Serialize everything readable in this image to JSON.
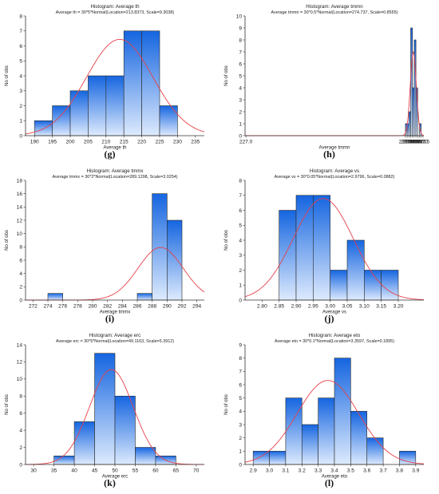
{
  "colors": {
    "bar_light": "#ddeafd",
    "bar_dark": "#1565e0",
    "bar_stroke": "#2a2a2a",
    "curve": "#e6404a",
    "axis": "#333333"
  },
  "chart_data": [
    {
      "id": "g",
      "type": "bar",
      "panel_label": "(g)",
      "title": "Histogram: Average th",
      "subtitle": "Average th = 30*5*Normal(Location=213.8373, Scale=9.3038)",
      "xlabel": "Average th",
      "ylabel": "No of obs",
      "xlim": [
        187.5,
        237.5
      ],
      "ylim": [
        0,
        8
      ],
      "xticks": [
        190,
        195,
        200,
        205,
        210,
        215,
        220,
        225,
        230,
        235
      ],
      "xtick_labels": [
        "190",
        "195",
        "200",
        "205",
        "210",
        "215",
        "220",
        "225",
        "230",
        "235"
      ],
      "yticks": [
        0,
        1,
        2,
        3,
        4,
        5,
        6,
        7,
        8
      ],
      "bin_width": 5,
      "bins": [
        {
          "start": 190,
          "count": 1
        },
        {
          "start": 195,
          "count": 2
        },
        {
          "start": 200,
          "count": 3
        },
        {
          "start": 205,
          "count": 4
        },
        {
          "start": 210,
          "count": 4
        },
        {
          "start": 215,
          "count": 7
        },
        {
          "start": 220,
          "count": 7
        },
        {
          "start": 225,
          "count": 2
        }
      ],
      "fit": {
        "n": 30,
        "binw": 5,
        "loc": 213.8373,
        "scale": 9.3038
      }
    },
    {
      "id": "h",
      "type": "bar",
      "panel_label": "(h)",
      "title": "Histogram: Average tmmn",
      "subtitle": "Average tmmn = 30*0.5*Normal(Location=274.737, Scale=0.8555)",
      "xlabel": "Average tmmn",
      "ylabel": "No of obs",
      "xlim": [
        226.75,
        277.75
      ],
      "ylim": [
        0,
        10
      ],
      "xticks": [
        227.0,
        272.5,
        273.0,
        273.5,
        274.0,
        274.5,
        275.0,
        275.5,
        276.0,
        276.5,
        277.0,
        277.5
      ],
      "xtick_labels": [
        "227.0",
        "272.5",
        "273.0",
        "273.5",
        "274.0",
        "274.5",
        "275.0",
        "275.5",
        "276.0",
        "276.5",
        "277.0",
        "277.5"
      ],
      "yticks": [
        0,
        1,
        2,
        3,
        4,
        5,
        6,
        7,
        8,
        9,
        10
      ],
      "bin_width": 0.5,
      "bins": [
        {
          "start": 272.5,
          "count": 1
        },
        {
          "start": 273.0,
          "count": 1
        },
        {
          "start": 273.5,
          "count": 2
        },
        {
          "start": 274.0,
          "count": 9
        },
        {
          "start": 274.5,
          "count": 4
        },
        {
          "start": 275.0,
          "count": 8
        },
        {
          "start": 275.5,
          "count": 4
        },
        {
          "start": 276.0,
          "count": 0
        },
        {
          "start": 276.5,
          "count": 1
        }
      ],
      "fit": {
        "n": 30,
        "binw": 0.5,
        "loc": 274.737,
        "scale": 0.8555
      }
    },
    {
      "id": "i",
      "type": "bar",
      "panel_label": "(i)",
      "title": "Histogram: Average tmmx",
      "subtitle": "Average tmmx = 30*2*Normal(Location=289.1298, Scale=3.0254)",
      "xlabel": "Average tmmx",
      "ylabel": "No of obs",
      "xlim": [
        271,
        295
      ],
      "ylim": [
        0,
        18
      ],
      "xticks": [
        272,
        274,
        276,
        278,
        280,
        282,
        284,
        286,
        288,
        290,
        292,
        294
      ],
      "xtick_labels": [
        "272",
        "274",
        "276",
        "278",
        "280",
        "282",
        "284",
        "286",
        "288",
        "290",
        "292",
        "294"
      ],
      "yticks": [
        0,
        2,
        4,
        6,
        8,
        10,
        12,
        14,
        16,
        18
      ],
      "bin_width": 2,
      "bins": [
        {
          "start": 274,
          "count": 1
        },
        {
          "start": 286,
          "count": 1
        },
        {
          "start": 288,
          "count": 16
        },
        {
          "start": 290,
          "count": 12
        }
      ],
      "fit": {
        "n": 30,
        "binw": 2,
        "loc": 289.1298,
        "scale": 3.0254
      }
    },
    {
      "id": "j",
      "type": "bar",
      "panel_label": "(j)",
      "title": "Histogram: Average vs",
      "subtitle": "Average vs = 30*0.05*Normal(Location=2.9796, Scale=0.0882)",
      "xlabel": "Average vs",
      "ylabel": "No of obs",
      "xlim": [
        2.75,
        3.275
      ],
      "ylim": [
        0,
        8
      ],
      "xticks": [
        2.8,
        2.85,
        2.9,
        2.95,
        3.0,
        3.05,
        3.1,
        3.15,
        3.2
      ],
      "xtick_labels": [
        "2.80",
        "2.85",
        "2.90",
        "2.95",
        "3.00",
        "3.05",
        "3.10",
        "3.15",
        "3.20"
      ],
      "yticks": [
        0,
        1,
        2,
        3,
        4,
        5,
        6,
        7,
        8
      ],
      "bin_width": 0.05,
      "bins": [
        {
          "start": 2.85,
          "count": 6
        },
        {
          "start": 2.9,
          "count": 7
        },
        {
          "start": 2.95,
          "count": 7
        },
        {
          "start": 3.0,
          "count": 2
        },
        {
          "start": 3.05,
          "count": 4
        },
        {
          "start": 3.1,
          "count": 2
        },
        {
          "start": 3.15,
          "count": 2
        }
      ],
      "fit": {
        "n": 30,
        "binw": 0.05,
        "loc": 2.9796,
        "scale": 0.0882
      }
    },
    {
      "id": "k",
      "type": "bar",
      "panel_label": "(k)",
      "title": "Histogram: Average erc",
      "subtitle": "Average erc = 30*5*Normal(Location=49.1163, Scale=5.3912)",
      "xlabel": "Average erc",
      "ylabel": "No of obs",
      "xlim": [
        28,
        72
      ],
      "ylim": [
        0,
        14
      ],
      "xticks": [
        30,
        35,
        40,
        45,
        50,
        55,
        60,
        65,
        70
      ],
      "xtick_labels": [
        "30",
        "35",
        "40",
        "45",
        "50",
        "55",
        "60",
        "65",
        "70"
      ],
      "yticks": [
        0,
        2,
        4,
        6,
        8,
        10,
        12,
        14
      ],
      "bin_width": 5,
      "bins": [
        {
          "start": 35,
          "count": 1
        },
        {
          "start": 40,
          "count": 5
        },
        {
          "start": 45,
          "count": 13
        },
        {
          "start": 50,
          "count": 8
        },
        {
          "start": 55,
          "count": 2
        },
        {
          "start": 60,
          "count": 1
        }
      ],
      "fit": {
        "n": 30,
        "binw": 5,
        "loc": 49.1163,
        "scale": 5.3912
      }
    },
    {
      "id": "l",
      "type": "bar",
      "panel_label": "(l)",
      "title": "Histogram: Average eto",
      "subtitle": "Average eto = 30*0.1*Normal(Location=3.3597, Scale=0.1895)",
      "xlabel": "Average eto",
      "ylabel": "No of obs",
      "xlim": [
        2.85,
        3.95
      ],
      "ylim": [
        0,
        9
      ],
      "xticks": [
        2.9,
        3.0,
        3.1,
        3.2,
        3.3,
        3.4,
        3.5,
        3.6,
        3.7,
        3.8,
        3.9
      ],
      "xtick_labels": [
        "2.9",
        "3.0",
        "3.1",
        "3.2",
        "3.3",
        "3.4",
        "3.5",
        "3.6",
        "3.7",
        "3.8",
        "3.9"
      ],
      "yticks": [
        0,
        1,
        2,
        3,
        4,
        5,
        6,
        7,
        8,
        9
      ],
      "bin_width": 0.1,
      "bins": [
        {
          "start": 2.9,
          "count": 1
        },
        {
          "start": 3.0,
          "count": 1
        },
        {
          "start": 3.1,
          "count": 5
        },
        {
          "start": 3.2,
          "count": 3
        },
        {
          "start": 3.3,
          "count": 5
        },
        {
          "start": 3.4,
          "count": 8
        },
        {
          "start": 3.5,
          "count": 4
        },
        {
          "start": 3.6,
          "count": 2
        },
        {
          "start": 3.7,
          "count": 0
        },
        {
          "start": 3.8,
          "count": 1
        }
      ],
      "fit": {
        "n": 30,
        "binw": 0.1,
        "loc": 3.3597,
        "scale": 0.1895
      }
    }
  ]
}
